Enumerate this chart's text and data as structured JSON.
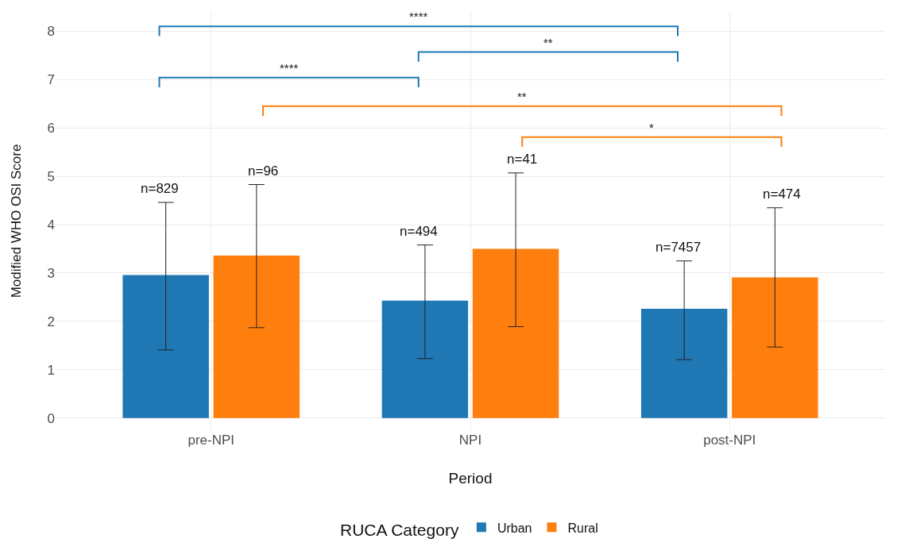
{
  "chart_data": {
    "type": "bar",
    "xlabel": "Period",
    "ylabel": "Modified WHO OSI Score",
    "legend_title": "RUCA Category",
    "categories": [
      "pre-NPI",
      "NPI",
      "post-NPI"
    ],
    "series": [
      {
        "name": "Urban",
        "color": "#1f78b4",
        "values": [
          2.96,
          2.43,
          2.26
        ],
        "errors": [
          [
            1.41,
            4.46
          ],
          [
            1.23,
            3.58
          ],
          [
            1.21,
            3.25
          ]
        ]
      },
      {
        "name": "Rural",
        "color": "#ff7f0e",
        "values": [
          3.36,
          3.5,
          2.91
        ],
        "errors": [
          [
            1.87,
            4.83
          ],
          [
            1.89,
            5.07
          ],
          [
            1.47,
            4.35
          ]
        ]
      }
    ],
    "ylim": [
      -0.25,
      8.4
    ],
    "yticks": [
      0,
      1,
      2,
      3,
      4,
      5,
      6,
      7,
      8
    ],
    "grid": true,
    "legend": "bottom",
    "annotations": [
      "n=829",
      "n=96",
      "n=494",
      "n=41",
      "n=7457",
      "n=474",
      "****",
      "**",
      "****",
      "**",
      "*"
    ]
  }
}
